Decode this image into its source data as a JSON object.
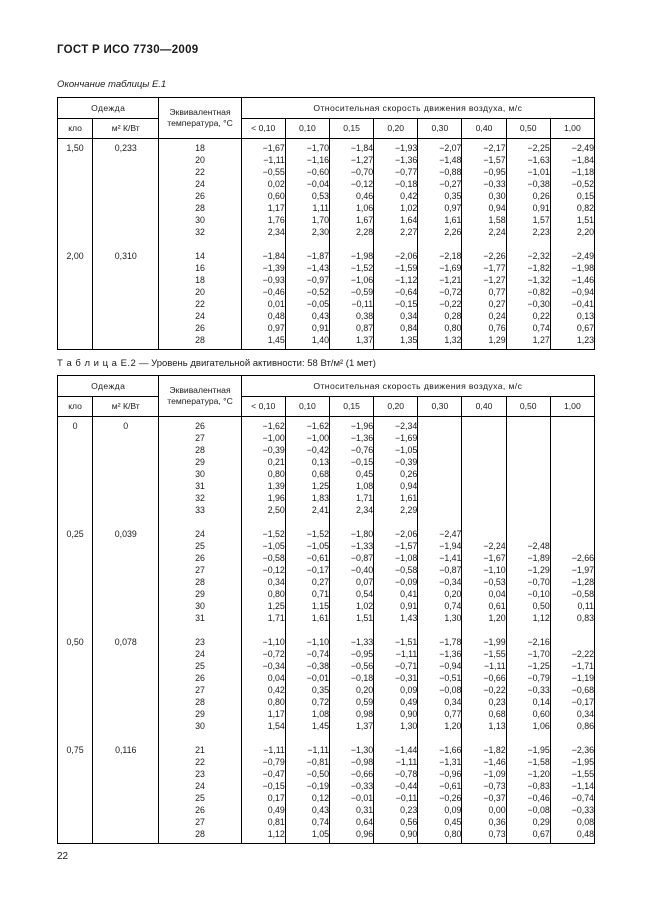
{
  "page": {
    "doc_title": "ГОСТ Р ИСО 7730—2009",
    "page_number": "22"
  },
  "table_e1": {
    "caption": "Окончание таблицы Е.1",
    "header": {
      "clothing": "Одежда",
      "clo": "кло",
      "m2kw": "м² К/Вт",
      "equiv_temp": "Эквивалентная температура, °С",
      "velocity_group": "Относительная скорость движения воздуха, м/с",
      "velocity_cols": [
        "< 0,10",
        "0,10",
        "0,15",
        "0,20",
        "0,30",
        "0,40",
        "0,50",
        "1,00"
      ]
    },
    "blocks": [
      {
        "clo": "1,50",
        "m2kw": "0,233",
        "rows": [
          {
            "t": "18",
            "v": [
              "−1,67",
              "−1,70",
              "−1,84",
              "−1,93",
              "−2,07",
              "−2,17",
              "−2,25",
              "−2,49"
            ]
          },
          {
            "t": "20",
            "v": [
              "−1,11",
              "−1,16",
              "−1,27",
              "−1,36",
              "−1,48",
              "−1,57",
              "−1,63",
              "−1,84"
            ]
          },
          {
            "t": "22",
            "v": [
              "−0,55",
              "−0,60",
              "−0,70",
              "−0,77",
              "−0,88",
              "−0,95",
              "−1,01",
              "−1,18"
            ]
          },
          {
            "t": "24",
            "v": [
              "0,02",
              "−0,04",
              "−0,12",
              "−0,18",
              "−0,27",
              "−0,33",
              "−0,38",
              "−0,52"
            ]
          },
          {
            "t": "26",
            "v": [
              "0,60",
              "0,53",
              "0,46",
              "0,42",
              "0,35",
              "0,30",
              "0,26",
              "0,15"
            ]
          },
          {
            "t": "28",
            "v": [
              "1,17",
              "1,11",
              "1,06",
              "1,02",
              "0,97",
              "0,94",
              "0,91",
              "0,82"
            ]
          },
          {
            "t": "30",
            "v": [
              "1,76",
              "1,70",
              "1,67",
              "1,64",
              "1,61",
              "1,58",
              "1,57",
              "1,51"
            ]
          },
          {
            "t": "32",
            "v": [
              "2,34",
              "2,30",
              "2,28",
              "2,27",
              "2,26",
              "2,24",
              "2,23",
              "2,20"
            ]
          }
        ]
      },
      {
        "clo": "2,00",
        "m2kw": "0,310",
        "rows": [
          {
            "t": "14",
            "v": [
              "−1,84",
              "−1,87",
              "−1,98",
              "−2,06",
              "−2,18",
              "−2,26",
              "−2,32",
              "−2,49"
            ]
          },
          {
            "t": "16",
            "v": [
              "−1,39",
              "−1,43",
              "−1,52",
              "−1,59",
              "−1,69",
              "−1,77",
              "−1,82",
              "−1,98"
            ]
          },
          {
            "t": "18",
            "v": [
              "−0,93",
              "−0,97",
              "−1,06",
              "−1,12",
              "−1,21",
              "−1,27",
              "−1,32",
              "−1,46"
            ]
          },
          {
            "t": "20",
            "v": [
              "−0,46",
              "−0,52",
              "−0,59",
              "−0,64",
              "−0,72",
              "0,77",
              "−0,82",
              "−0,94"
            ]
          },
          {
            "t": "22",
            "v": [
              "0,01",
              "−0,05",
              "−0,11",
              "−0,15",
              "−0,22",
              "0,27",
              "−0,30",
              "−0,41"
            ]
          },
          {
            "t": "24",
            "v": [
              "0,48",
              "0,43",
              "0,38",
              "0,34",
              "0,28",
              "0,24",
              "0,22",
              "0,13"
            ]
          },
          {
            "t": "26",
            "v": [
              "0,97",
              "0,91",
              "0,87",
              "0,84",
              "0,80",
              "0,76",
              "0,74",
              "0,67"
            ]
          },
          {
            "t": "28",
            "v": [
              "1,45",
              "1,40",
              "1,37",
              "1,35",
              "1,32",
              "1,29",
              "1,27",
              "1,23"
            ]
          }
        ]
      }
    ]
  },
  "table_e2": {
    "caption_label": "Т а б л и ц а  Е.2",
    "caption_text": "— Уровень двигательной активности: 58 Вт/м² (1 мет)",
    "header": {
      "clothing": "Одежда",
      "clo": "кло",
      "m2kw": "м² К/Вт",
      "equiv_temp": "Эквивалентная температура, °С",
      "velocity_group": "Относительная скорость движения воздуха, м/с",
      "velocity_cols": [
        "< 0,10",
        "0,10",
        "0,15",
        "0,20",
        "0,30",
        "0,40",
        "0,50",
        "1,00"
      ]
    },
    "blocks": [
      {
        "clo": "0",
        "m2kw": "0",
        "rows": [
          {
            "t": "26",
            "v": [
              "−1,62",
              "−1,62",
              "−1,96",
              "−2,34"
            ]
          },
          {
            "t": "27",
            "v": [
              "−1,00",
              "−1,00",
              "−1,36",
              "−1,69"
            ]
          },
          {
            "t": "28",
            "v": [
              "−0,39",
              "−0,42",
              "−0,76",
              "−1,05"
            ]
          },
          {
            "t": "29",
            "v": [
              "0,21",
              "0,13",
              "−0,15",
              "−0,39"
            ]
          },
          {
            "t": "30",
            "v": [
              "0,80",
              "0,68",
              "0,45",
              "0,26"
            ]
          },
          {
            "t": "31",
            "v": [
              "1,39",
              "1,25",
              "1,08",
              "0,94"
            ]
          },
          {
            "t": "32",
            "v": [
              "1,96",
              "1,83",
              "1,71",
              "1,61"
            ]
          },
          {
            "t": "33",
            "v": [
              "2,50",
              "2,41",
              "2,34",
              "2,29"
            ]
          }
        ]
      },
      {
        "clo": "0,25",
        "m2kw": "0,039",
        "rows": [
          {
            "t": "24",
            "v": [
              "−1,52",
              "−1,52",
              "−1,80",
              "−2,06",
              "−2,47"
            ]
          },
          {
            "t": "25",
            "v": [
              "−1,05",
              "−1,05",
              "−1,33",
              "−1,57",
              "−1,94",
              "−2,24",
              "−2,48"
            ]
          },
          {
            "t": "26",
            "v": [
              "−0,58",
              "−0,61",
              "−0,87",
              "−1,08",
              "−1,41",
              "−1,67",
              "−1,89",
              "−2,66"
            ]
          },
          {
            "t": "27",
            "v": [
              "−0,12",
              "−0,17",
              "−0,40",
              "−0,58",
              "−0,87",
              "−1,10",
              "−1,29",
              "−1,97"
            ]
          },
          {
            "t": "28",
            "v": [
              "0,34",
              "0,27",
              "0,07",
              "−0,09",
              "−0,34",
              "−0,53",
              "−0,70",
              "−1,28"
            ]
          },
          {
            "t": "29",
            "v": [
              "0,80",
              "0,71",
              "0,54",
              "0,41",
              "0,20",
              "0,04",
              "−0,10",
              "−0,58"
            ]
          },
          {
            "t": "30",
            "v": [
              "1,25",
              "1,15",
              "1,02",
              "0,91",
              "0,74",
              "0,61",
              "0,50",
              "0,11"
            ]
          },
          {
            "t": "31",
            "v": [
              "1,71",
              "1,61",
              "1,51",
              "1,43",
              "1,30",
              "1,20",
              "1,12",
              "0,83"
            ]
          }
        ]
      },
      {
        "clo": "0,50",
        "m2kw": "0,078",
        "rows": [
          {
            "t": "23",
            "v": [
              "−1,10",
              "−1,10",
              "−1,33",
              "−1,51",
              "−1,78",
              "−1,99",
              "−2,16"
            ]
          },
          {
            "t": "24",
            "v": [
              "−0,72",
              "−0,74",
              "−0,95",
              "−1,11",
              "−1,36",
              "−1,55",
              "−1,70",
              "−2,22"
            ]
          },
          {
            "t": "25",
            "v": [
              "−0,34",
              "−0,38",
              "−0,56",
              "−0,71",
              "−0,94",
              "−1,11",
              "−1,25",
              "−1,71"
            ]
          },
          {
            "t": "26",
            "v": [
              "0,04",
              "−0,01",
              "−0,18",
              "−0,31",
              "−0,51",
              "−0,66",
              "−0,79",
              "−1,19"
            ]
          },
          {
            "t": "27",
            "v": [
              "0,42",
              "0,35",
              "0,20",
              "0,09",
              "−0,08",
              "−0,22",
              "−0,33",
              "−0,68"
            ]
          },
          {
            "t": "28",
            "v": [
              "0,80",
              "0,72",
              "0,59",
              "0,49",
              "0,34",
              "0,23",
              "0,14",
              "−0,17"
            ]
          },
          {
            "t": "29",
            "v": [
              "1,17",
              "1,08",
              "0,98",
              "0,90",
              "0,77",
              "0,68",
              "0,60",
              "0,34"
            ]
          },
          {
            "t": "30",
            "v": [
              "1,54",
              "1,45",
              "1,37",
              "1,30",
              "1,20",
              "1,13",
              "1,06",
              "0,86"
            ]
          }
        ]
      },
      {
        "clo": "0,75",
        "m2kw": "0,116",
        "rows": [
          {
            "t": "21",
            "v": [
              "−1,11",
              "−1,11",
              "−1,30",
              "−1,44",
              "−1,66",
              "−1,82",
              "−1,95",
              "−2,36"
            ]
          },
          {
            "t": "22",
            "v": [
              "−0,79",
              "−0,81",
              "−0,98",
              "−1,11",
              "−1,31",
              "−1,46",
              "−1,58",
              "−1,95"
            ]
          },
          {
            "t": "23",
            "v": [
              "−0,47",
              "−0,50",
              "−0,66",
              "−0,78",
              "−0,96",
              "−1,09",
              "−1,20",
              "−1,55"
            ]
          },
          {
            "t": "24",
            "v": [
              "−0,15",
              "−0,19",
              "−0,33",
              "−0,44",
              "−0,61",
              "−0,73",
              "−0,83",
              "−1,14"
            ]
          },
          {
            "t": "25",
            "v": [
              "0,17",
              "0,12",
              "−0,01",
              "−0,11",
              "−0,26",
              "−0,37",
              "−0,46",
              "−0,74"
            ]
          },
          {
            "t": "26",
            "v": [
              "0,49",
              "0,43",
              "0,31",
              "0,23",
              "0,09",
              "0,00",
              "−0,08",
              "−0,33"
            ]
          },
          {
            "t": "27",
            "v": [
              "0,81",
              "0,74",
              "0,64",
              "0,56",
              "0,45",
              "0,36",
              "0,29",
              "0,08"
            ]
          },
          {
            "t": "28",
            "v": [
              "1,12",
              "1,05",
              "0,96",
              "0,90",
              "0,80",
              "0,73",
              "0,67",
              "0,48"
            ]
          }
        ]
      }
    ]
  }
}
